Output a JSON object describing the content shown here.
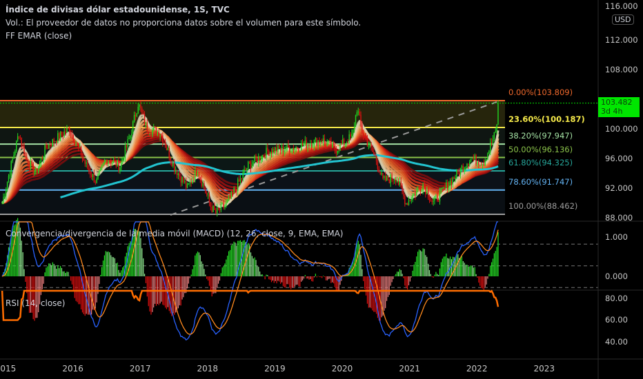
{
  "header": {
    "title": "Índice de divisas dólar estadounidense, 1S, TVC",
    "volume_note": "Vol.: El proveedor de datos no proporciona datos sobre el volumen para este símbolo.",
    "indicator": "FF EMAR (close)"
  },
  "macd_label": "Convergencia/divergencia de la media móvil (MACD) (12, 26, close, 9, EMA, EMA)",
  "rsi_label": "RSI (14, close)",
  "currency": "USD",
  "last_price": {
    "value": "103.482",
    "countdown": "3d 4h",
    "color": "#00e600"
  },
  "chart_data": {
    "type": "candlestick",
    "interval": "1W",
    "price_axis": {
      "ticks": [
        "116.000",
        "112.000",
        "108.000",
        "100.000",
        "96.000",
        "92.000",
        "88.000"
      ],
      "range": [
        87.8,
        118
      ]
    },
    "macd_axis": {
      "ticks": [
        "1.000",
        "0.000"
      ]
    },
    "rsi_axis": {
      "ticks": [
        "80.00",
        "60.00",
        "40.00"
      ],
      "bands": [
        70,
        50,
        30
      ]
    },
    "time_axis": [
      "2015",
      "2016",
      "2017",
      "2018",
      "2019",
      "2020",
      "2021",
      "2022",
      "2023"
    ],
    "close_path": [
      [
        2014.95,
        90
      ],
      [
        2015.2,
        99.5
      ],
      [
        2015.3,
        96
      ],
      [
        2015.45,
        94
      ],
      [
        2015.6,
        97.5
      ],
      [
        2015.8,
        99
      ],
      [
        2015.95,
        100
      ],
      [
        2016.2,
        95
      ],
      [
        2016.35,
        92.8
      ],
      [
        2016.5,
        96
      ],
      [
        2016.7,
        95
      ],
      [
        2016.85,
        99
      ],
      [
        2016.97,
        103.5
      ],
      [
        2017.1,
        100
      ],
      [
        2017.3,
        99.5
      ],
      [
        2017.5,
        95
      ],
      [
        2017.7,
        92
      ],
      [
        2017.85,
        94.5
      ],
      [
        2018.05,
        89.5
      ],
      [
        2018.12,
        88.6
      ],
      [
        2018.3,
        90
      ],
      [
        2018.6,
        95
      ],
      [
        2018.9,
        97
      ],
      [
        2019.3,
        97.5
      ],
      [
        2019.7,
        98.5
      ],
      [
        2019.9,
        97.2
      ],
      [
        2020.15,
        99
      ],
      [
        2020.22,
        102.8
      ],
      [
        2020.3,
        99.5
      ],
      [
        2020.5,
        96
      ],
      [
        2020.6,
        93
      ],
      [
        2020.8,
        93.5
      ],
      [
        2020.95,
        90
      ],
      [
        2021.2,
        92.5
      ],
      [
        2021.35,
        90
      ],
      [
        2021.6,
        92.8
      ],
      [
        2021.9,
        96
      ],
      [
        2022.1,
        95.5
      ],
      [
        2022.28,
        99.5
      ],
      [
        2022.33,
        103.5
      ]
    ],
    "fibonacci": [
      {
        "label": "0.00%(103.809)",
        "level": 103.809,
        "color": "#f0692c"
      },
      {
        "label": "23.60%(100.187)",
        "level": 100.187,
        "color": "#f5e94a"
      },
      {
        "label": "38.20%(97.947)",
        "level": 97.947,
        "color": "#a5e3a5"
      },
      {
        "label": "50.00%(96.136)",
        "level": 96.136,
        "color": "#8bc34a"
      },
      {
        "label": "61.80%(94.325)",
        "level": 94.325,
        "color": "#26a69a"
      },
      {
        "label": "78.60%(91.747)",
        "level": 91.747,
        "color": "#64b5f6"
      },
      {
        "label": "100.00%(88.462)",
        "level": 88.462,
        "color": "#9e9e9e"
      }
    ],
    "colors": {
      "up": "#22d622",
      "down": "#e01010",
      "ema200": "#22c4d0",
      "macd": "#2962ff",
      "signal": "#ff8a1e",
      "rsi": "#ff6d00"
    }
  }
}
